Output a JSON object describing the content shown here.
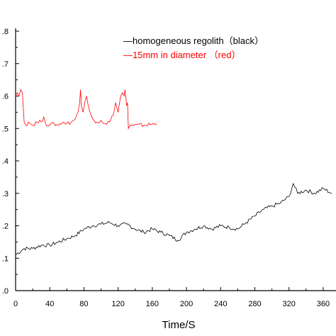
{
  "chart_data": {
    "type": "line",
    "title": "",
    "xlabel": "Time/S",
    "ylabel": "",
    "xlim": [
      0,
      375
    ],
    "ylim": [
      0,
      0.8
    ],
    "x_ticks": [
      0,
      40,
      80,
      120,
      160,
      200,
      240,
      280,
      320,
      360
    ],
    "x_tick_labels": [
      "0",
      "40",
      "80",
      "120",
      "160",
      "200",
      "240",
      "280",
      "320",
      "360"
    ],
    "y_ticks": [
      0.0,
      0.1,
      0.2,
      0.3,
      0.4,
      0.5,
      0.6,
      0.7,
      0.8
    ],
    "y_tick_labels": [
      ".0",
      ".1",
      ".2",
      ".3",
      ".4",
      ".5",
      ".6",
      ".7",
      ".8"
    ],
    "grid": false,
    "legend_position": "top-right",
    "legend": [
      {
        "label": "—homogeneous regolith（black）",
        "color": "#000000"
      },
      {
        "label": "—15mm in diameter （red）",
        "color": "#ff0000"
      }
    ],
    "series": [
      {
        "color": "#000000",
        "x": [
          0,
          10,
          20,
          30,
          40,
          50,
          60,
          70,
          80,
          90,
          100,
          110,
          120,
          130,
          140,
          150,
          160,
          170,
          180,
          190,
          200,
          210,
          220,
          230,
          240,
          250,
          260,
          270,
          280,
          290,
          300,
          310,
          320,
          325,
          330,
          340,
          350,
          360,
          370
        ],
        "y": [
          0.11,
          0.13,
          0.13,
          0.14,
          0.14,
          0.15,
          0.16,
          0.17,
          0.19,
          0.2,
          0.205,
          0.21,
          0.2,
          0.205,
          0.19,
          0.18,
          0.19,
          0.18,
          0.17,
          0.155,
          0.18,
          0.19,
          0.2,
          0.19,
          0.2,
          0.195,
          0.19,
          0.21,
          0.23,
          0.25,
          0.26,
          0.27,
          0.29,
          0.33,
          0.3,
          0.31,
          0.3,
          0.315,
          0.3
        ]
      },
      {
        "color": "#ff0000",
        "x": [
          0,
          2,
          4,
          6,
          8,
          10,
          12,
          15,
          20,
          25,
          30,
          33,
          35,
          40,
          45,
          50,
          55,
          60,
          65,
          70,
          73,
          75,
          76,
          77,
          79,
          81,
          83,
          85,
          87,
          90,
          95,
          100,
          105,
          110,
          114,
          117,
          120,
          123,
          125,
          127,
          128,
          130,
          131,
          132,
          134,
          135,
          150,
          165
        ],
        "y": [
          0.6,
          0.61,
          0.6,
          0.62,
          0.61,
          0.52,
          0.51,
          0.52,
          0.51,
          0.52,
          0.52,
          0.535,
          0.515,
          0.51,
          0.515,
          0.51,
          0.52,
          0.515,
          0.52,
          0.53,
          0.55,
          0.58,
          0.62,
          0.57,
          0.55,
          0.58,
          0.6,
          0.57,
          0.55,
          0.53,
          0.52,
          0.525,
          0.515,
          0.52,
          0.54,
          0.58,
          0.55,
          0.6,
          0.61,
          0.6,
          0.62,
          0.57,
          0.58,
          0.5,
          0.51,
          0.51,
          0.51,
          0.515
        ]
      }
    ]
  }
}
